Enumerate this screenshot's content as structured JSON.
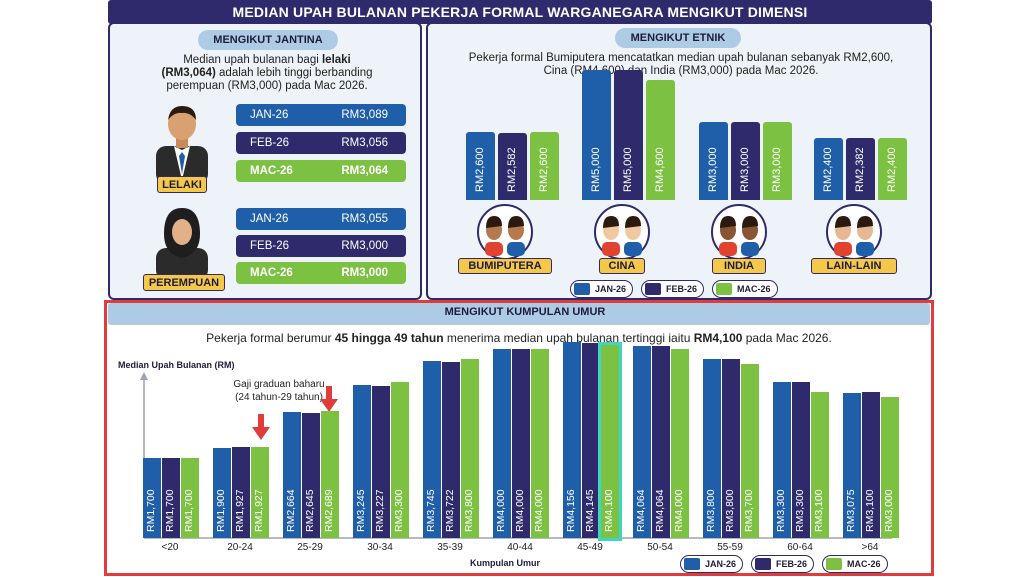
{
  "banner_title": "MEDIAN UPAH BULANAN PEKERJA FORMAL WARGANEGARA MENGIKUT DIMENSI",
  "gender": {
    "pill": "MENGIKUT JANTINA",
    "desc_line1": "Median upah bulanan bagi ",
    "desc_bold1": "lelaki",
    "desc_line2_bold": "(RM3,064)",
    "desc_line2": " adalah lebih tinggi berbanding",
    "desc_line3": "perempuan (RM3,000) pada Mac 2026.",
    "male_tag": "LELAKI",
    "female_tag": "PEREMPUAN",
    "male_rows": [
      {
        "month": "JAN-26",
        "value": "RM3,089"
      },
      {
        "month": "FEB-26",
        "value": "RM3,056"
      },
      {
        "month": "MAC-26",
        "value": "RM3,064"
      }
    ],
    "female_rows": [
      {
        "month": "JAN-26",
        "value": "RM3,055"
      },
      {
        "month": "FEB-26",
        "value": "RM3,000"
      },
      {
        "month": "MAC-26",
        "value": "RM3,000"
      }
    ]
  },
  "ethnic": {
    "pill": "MENGIKUT ETNIK",
    "desc_line1": "Pekerja formal Bumiputera mencatatkan median upah bulanan sebanyak RM2,600,",
    "desc_line2": "Cina (RM4,600) dan India (RM3,000) pada Mac 2026.",
    "groups": [
      "BUMIPUTERA",
      "CINA",
      "INDIA",
      "LAIN-LAIN"
    ],
    "labels": [
      [
        "RM2,600",
        "RM2,582",
        "RM2,600"
      ],
      [
        "RM5,000",
        "RM5,000",
        "RM4,600"
      ],
      [
        "RM3,000",
        "RM3,000",
        "RM3,000"
      ],
      [
        "RM2,400",
        "RM2,382",
        "RM2,400"
      ]
    ],
    "legend": [
      "JAN-26",
      "FEB-26",
      "MAC-26"
    ]
  },
  "age": {
    "pill": "MENGIKUT KUMPULAN UMUR",
    "desc_pre": "Pekerja formal berumur ",
    "desc_bold1": "45 hingga 49 tahun",
    "desc_mid": " menerima median upah bulanan tertinggi iaitu ",
    "desc_bold2": "RM4,100",
    "desc_post": " pada Mac 2026.",
    "annotation_line1": "Gaji graduan baharu",
    "annotation_line2": "(24 tahun-29 tahun)",
    "legend": [
      "JAN-26",
      "FEB-26",
      "MAC-26"
    ]
  },
  "colors": {
    "jan": "#1f5ea8",
    "feb": "#2e2a6b",
    "mac": "#7dc142",
    "highlight": "#e03c3c",
    "accent_box": "#3dd6c6"
  },
  "chart_data": [
    {
      "type": "bar",
      "categories": [
        "BUMIPUTERA",
        "CINA",
        "INDIA",
        "LAIN-LAIN"
      ],
      "series": [
        {
          "name": "JAN-26",
          "values": [
            2600,
            5000,
            3000,
            2400
          ]
        },
        {
          "name": "FEB-26",
          "values": [
            2582,
            5000,
            3000,
            2382
          ]
        },
        {
          "name": "MAC-26",
          "values": [
            2600,
            4600,
            3000,
            2400
          ]
        }
      ],
      "title": "MENGIKUT ETNIK"
    },
    {
      "type": "bar",
      "title": "MENGIKUT KUMPULAN UMUR",
      "xlabel": "Kumpulan Umur",
      "ylabel": "Median Upah Bulanan (RM)",
      "categories": [
        "<20",
        "20-24",
        "25-29",
        "30-34",
        "35-39",
        "40-44",
        "45-49",
        "50-54",
        "55-59",
        "60-64",
        ">64"
      ],
      "series": [
        {
          "name": "JAN-26",
          "values": [
            1700,
            1900,
            2664,
            3245,
            3745,
            4000,
            4156,
            4064,
            3800,
            3300,
            3075
          ],
          "labels": [
            "RM1,700",
            "RM1,900",
            "RM2,664",
            "RM3,245",
            "RM3,745",
            "RM4,000",
            "RM4,156",
            "RM4,064",
            "RM3,800",
            "RM3,300",
            "RM3,075"
          ]
        },
        {
          "name": "FEB-26",
          "values": [
            1700,
            1927,
            2645,
            3227,
            3722,
            4000,
            4145,
            4064,
            3800,
            3300,
            3100
          ],
          "labels": [
            "RM1,700",
            "RM1,927",
            "RM2,645",
            "RM3,227",
            "RM3,722",
            "RM4,000",
            "RM4,145",
            "RM4,064",
            "RM3,800",
            "RM3,300",
            "RM3,100"
          ]
        },
        {
          "name": "MAC-26",
          "values": [
            1700,
            1927,
            2689,
            3300,
            3800,
            4000,
            4100,
            4000,
            3700,
            3100,
            3000
          ],
          "labels": [
            "RM1,700",
            "RM1,927",
            "RM2,689",
            "RM3,300",
            "RM3,800",
            "RM4,000",
            "RM4,100",
            "RM4,000",
            "RM3,700",
            "RM3,100",
            "RM3,000"
          ]
        }
      ]
    }
  ]
}
